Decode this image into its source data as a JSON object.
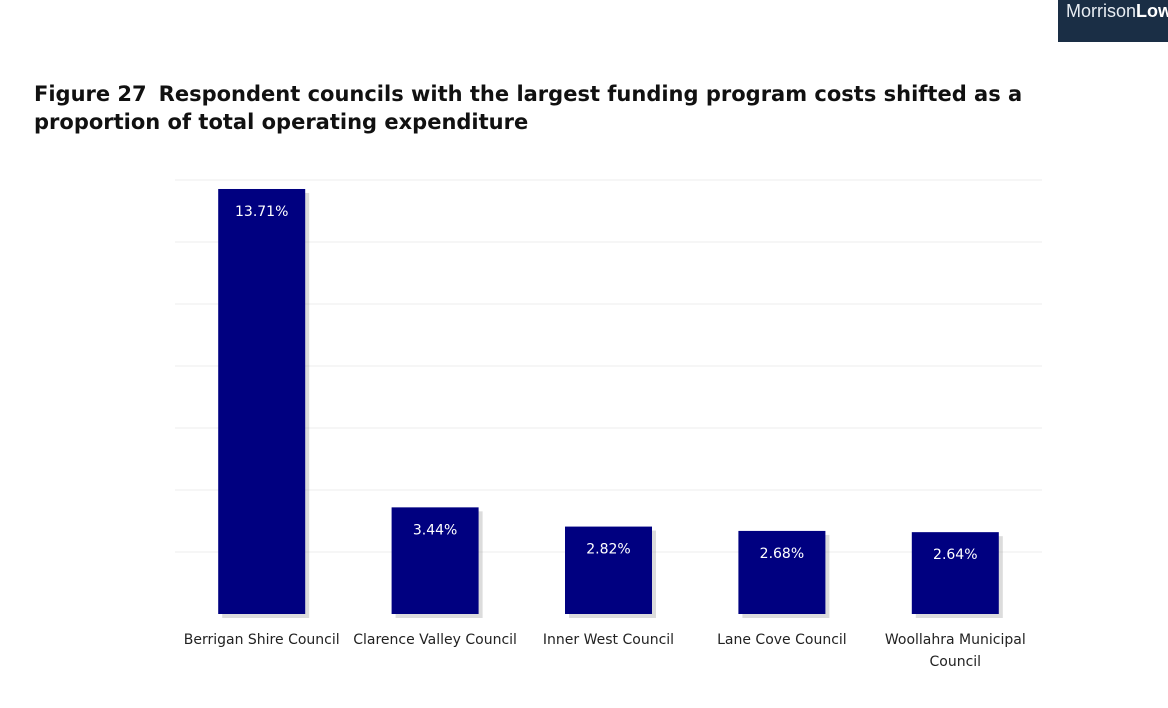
{
  "logo": {
    "light": "Morrison",
    "bold": "Low"
  },
  "figure": {
    "number": "Figure 27",
    "title": "Respondent councils with the largest funding program costs shifted as a proportion of total operating expenditure"
  },
  "colors": {
    "bar": "#000080",
    "logo_bg": "#1a2e45"
  },
  "chart_data": {
    "type": "bar",
    "categories": [
      "Berrigan Shire Council",
      "Clarence Valley Council",
      "Inner West Council",
      "Lane Cove Council",
      "Woollahra Municipal Council"
    ],
    "category_lines": [
      [
        "Berrigan Shire Council"
      ],
      [
        "Clarence Valley Council"
      ],
      [
        "Inner West Council"
      ],
      [
        "Lane Cove Council"
      ],
      [
        "Woollahra Municipal",
        "Council"
      ]
    ],
    "values": [
      13.71,
      3.44,
      2.82,
      2.68,
      2.64
    ],
    "data_labels": [
      "13.71%",
      "3.44%",
      "2.82%",
      "2.68%",
      "2.64%"
    ],
    "ylim": [
      0,
      14
    ],
    "grid": true
  }
}
